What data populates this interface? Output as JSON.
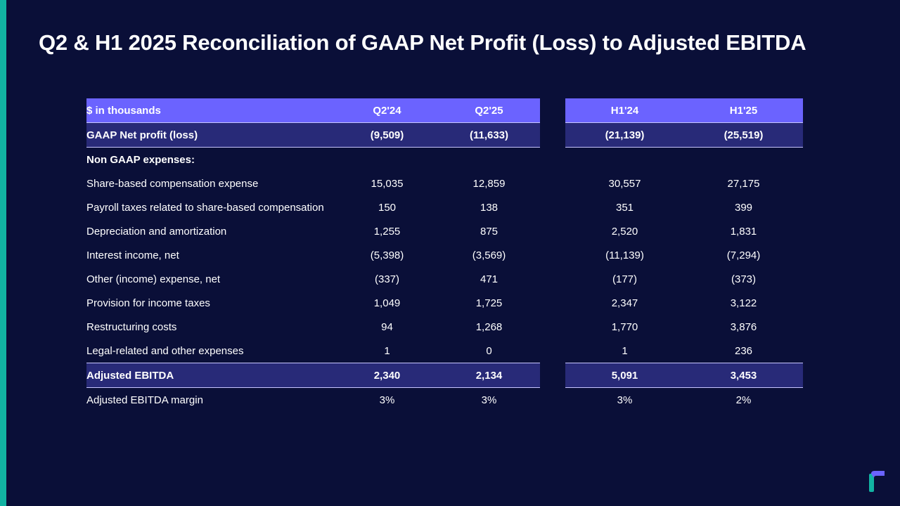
{
  "colors": {
    "background": "#0a0f38",
    "accent": "#12b3a3",
    "header": "#6b63ff",
    "highlight": "#282a78"
  },
  "title": "Q2 & H1 2025 Reconciliation of GAAP Net Profit (Loss) to Adjusted EBITDA",
  "table": {
    "header": {
      "label": "$ in thousands",
      "q1": "Q2'24",
      "q2": "Q2'25",
      "h1": "H1'24",
      "h2": "H1'25"
    },
    "rows": [
      {
        "label": "GAAP Net profit (loss)",
        "q1": "(9,509)",
        "q2": "(11,633)",
        "h1": "(21,139)",
        "h2": "(25,519)"
      },
      {
        "label": "Non GAAP expenses:",
        "q1": "",
        "q2": "",
        "h1": "",
        "h2": ""
      },
      {
        "label": "Share-based compensation expense",
        "q1": "15,035",
        "q2": "12,859",
        "h1": "30,557",
        "h2": "27,175"
      },
      {
        "label": "Payroll taxes related to share-based compensation",
        "q1": "150",
        "q2": "138",
        "h1": "351",
        "h2": "399"
      },
      {
        "label": "Depreciation and amortization",
        "q1": "1,255",
        "q2": "875",
        "h1": "2,520",
        "h2": "1,831"
      },
      {
        "label": "Interest income, net",
        "q1": "(5,398)",
        "q2": "(3,569)",
        "h1": "(11,139)",
        "h2": "(7,294)"
      },
      {
        "label": "Other (income) expense, net",
        "q1": "(337)",
        "q2": "471",
        "h1": "(177)",
        "h2": "(373)"
      },
      {
        "label": "Provision for income taxes",
        "q1": "1,049",
        "q2": "1,725",
        "h1": "2,347",
        "h2": "3,122"
      },
      {
        "label": "Restructuring costs",
        "q1": "94",
        "q2": "1,268",
        "h1": "1,770",
        "h2": "3,876"
      },
      {
        "label": "Legal-related and other expenses",
        "q1": "1",
        "q2": "0",
        "h1": "1",
        "h2": "236"
      },
      {
        "label": "Adjusted EBITDA",
        "q1": "2,340",
        "q2": "2,134",
        "h1": "5,091",
        "h2": "3,453"
      },
      {
        "label": "Adjusted EBITDA margin",
        "q1": "3%",
        "q2": "3%",
        "h1": "3%",
        "h2": "2%"
      }
    ]
  }
}
